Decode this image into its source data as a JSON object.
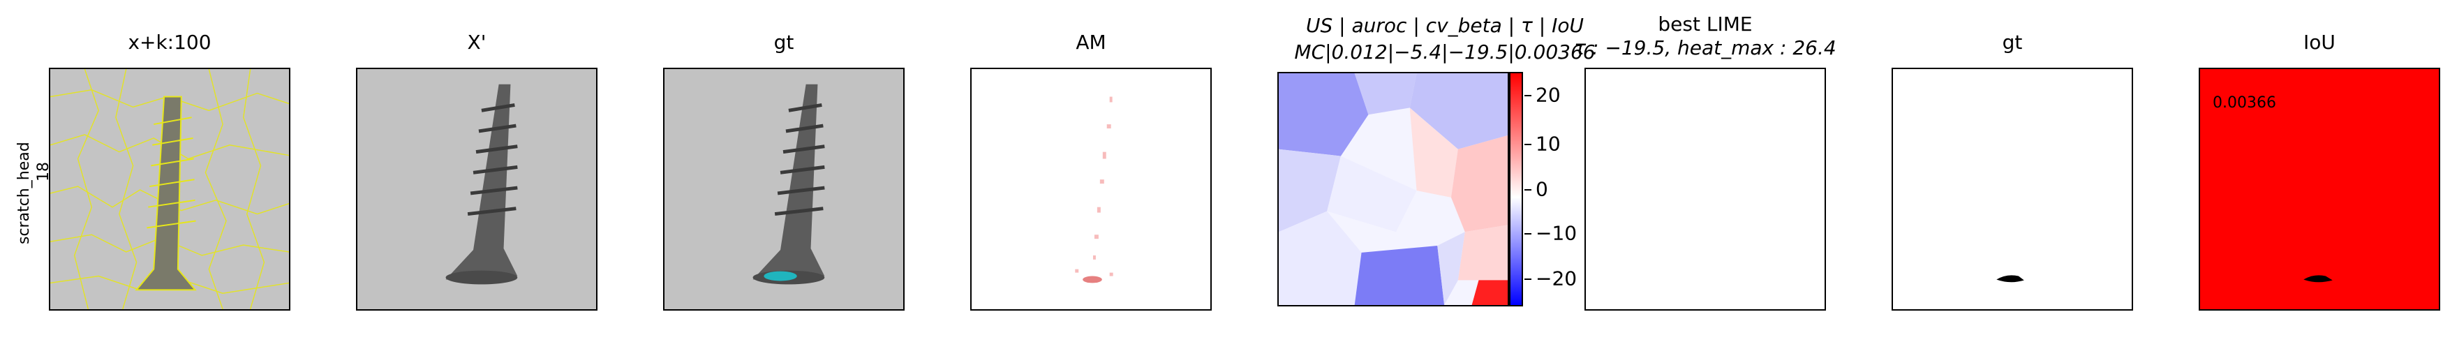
{
  "row_label": {
    "line1": "scratch_head",
    "line2": "18"
  },
  "panels": [
    {
      "title": "x+k:100"
    },
    {
      "title": "X'"
    },
    {
      "title": "gt"
    },
    {
      "title": "AM"
    },
    {
      "title_line1": "US | auroc | cv_beta | τ | IoU",
      "title_line2": "MC|0.012|−5.4|−19.5|0.00366"
    },
    {
      "title_line1": "best LIME",
      "title_line2": "τ : −19.5, heat_max : 26.4"
    },
    {
      "title": "gt"
    },
    {
      "title": "IoU",
      "value": "0.00366"
    }
  ],
  "colorbar": {
    "ticks": [
      "20",
      "10",
      "0",
      "−10",
      "−20"
    ],
    "colors": {
      "high": "#ff0000",
      "mid": "#ffffff",
      "low": "#0000ff"
    }
  },
  "colors": {
    "iou_background": "#ff0000",
    "mask": "#000000",
    "overlay_contour": "#e6e619",
    "overlay_highlight": "#19c8d2"
  }
}
